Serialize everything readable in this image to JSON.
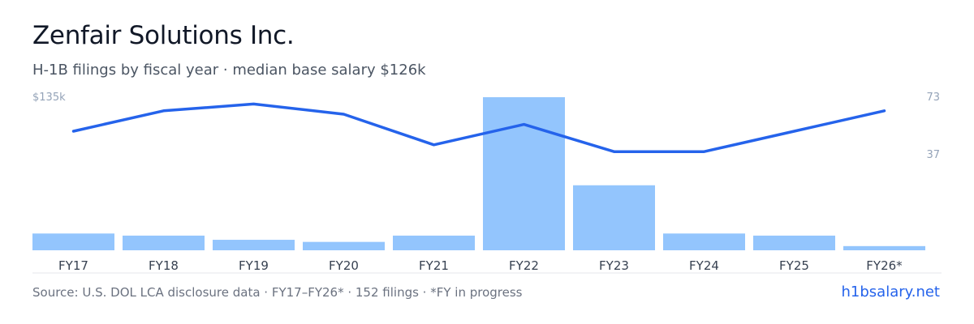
{
  "header": {
    "title": "Zenfair Solutions Inc.",
    "subtitle": "H-1B filings by fiscal year · median base salary $126k"
  },
  "chart_data": {
    "type": "bar",
    "categories": [
      "FY17",
      "FY18",
      "FY19",
      "FY20",
      "FY21",
      "FY22",
      "FY23",
      "FY24",
      "FY25",
      "FY26*"
    ],
    "series": [
      {
        "type": "bar",
        "axis": "right",
        "values": [
          8,
          7,
          5,
          4,
          7,
          73,
          31,
          8,
          7,
          2
        ]
      },
      {
        "type": "line",
        "axis": "left",
        "values": [
          125,
          131,
          133,
          130,
          121,
          127,
          119,
          119,
          125,
          131
        ]
      }
    ],
    "y_left": {
      "max_label": "$135k",
      "max": 135,
      "min": 90
    },
    "y_right": {
      "tick_labels": [
        "73",
        "37"
      ],
      "ticks": [
        73,
        37
      ],
      "max": 73,
      "min": 0
    },
    "colors": {
      "bar": "#93c5fd",
      "line": "#2563eb"
    }
  },
  "footer": {
    "source": "Source: U.S. DOL LCA disclosure data · FY17–FY26* · 152 filings · *FY in progress",
    "brand": "h1bsalary.net"
  }
}
